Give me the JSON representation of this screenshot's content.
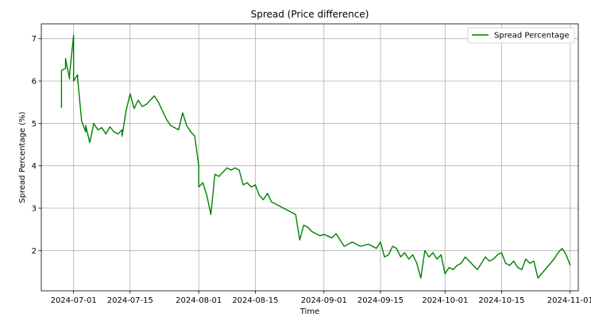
{
  "chart_data": {
    "type": "line",
    "title": "Spread (Price difference)",
    "xlabel": "Time",
    "ylabel": "Spread Percentage (%)",
    "grid": true,
    "legend_position": "top-right",
    "x_range": [
      "2024-06-23",
      "2024-11-03"
    ],
    "ylim": [
      1.05,
      7.35
    ],
    "x_ticks": [
      "2024-07-01",
      "2024-07-15",
      "2024-08-01",
      "2024-08-15",
      "2024-09-01",
      "2024-09-15",
      "2024-10-01",
      "2024-10-15",
      "2024-11-01"
    ],
    "y_ticks": [
      2,
      3,
      4,
      5,
      6,
      7
    ],
    "series": [
      {
        "name": "Spread Percentage",
        "color": "#008000",
        "points": [
          [
            "2024-06-28",
            5.37
          ],
          [
            "2024-06-28",
            6.25
          ],
          [
            "2024-06-29",
            6.3
          ],
          [
            "2024-06-29",
            6.53
          ],
          [
            "2024-06-30",
            6.05
          ],
          [
            "2024-06-30",
            6.15
          ],
          [
            "2024-07-01",
            7.08
          ],
          [
            "2024-07-01",
            6.0
          ],
          [
            "2024-07-02",
            6.15
          ],
          [
            "2024-07-02",
            6.05
          ],
          [
            "2024-07-03",
            5.05
          ],
          [
            "2024-07-04",
            4.8
          ],
          [
            "2024-07-04",
            4.95
          ],
          [
            "2024-07-05",
            4.55
          ],
          [
            "2024-07-06",
            5.0
          ],
          [
            "2024-07-07",
            4.85
          ],
          [
            "2024-07-08",
            4.9
          ],
          [
            "2024-07-09",
            4.75
          ],
          [
            "2024-07-10",
            4.92
          ],
          [
            "2024-07-11",
            4.8
          ],
          [
            "2024-07-12",
            4.75
          ],
          [
            "2024-07-13",
            4.85
          ],
          [
            "2024-07-13",
            4.7
          ],
          [
            "2024-07-14",
            5.3
          ],
          [
            "2024-07-15",
            5.7
          ],
          [
            "2024-07-16",
            5.35
          ],
          [
            "2024-07-17",
            5.55
          ],
          [
            "2024-07-18",
            5.4
          ],
          [
            "2024-07-19",
            5.45
          ],
          [
            "2024-07-20",
            5.55
          ],
          [
            "2024-07-21",
            5.65
          ],
          [
            "2024-07-22",
            5.5
          ],
          [
            "2024-07-23",
            5.3
          ],
          [
            "2024-07-24",
            5.1
          ],
          [
            "2024-07-25",
            4.95
          ],
          [
            "2024-07-26",
            4.9
          ],
          [
            "2024-07-27",
            4.85
          ],
          [
            "2024-07-28",
            5.25
          ],
          [
            "2024-07-29",
            4.95
          ],
          [
            "2024-07-30",
            4.8
          ],
          [
            "2024-07-31",
            4.7
          ],
          [
            "2024-08-01",
            4.0
          ],
          [
            "2024-08-01",
            3.5
          ],
          [
            "2024-08-02",
            3.6
          ],
          [
            "2024-08-03",
            3.3
          ],
          [
            "2024-08-04",
            2.85
          ],
          [
            "2024-08-05",
            3.8
          ],
          [
            "2024-08-06",
            3.75
          ],
          [
            "2024-08-07",
            3.85
          ],
          [
            "2024-08-08",
            3.95
          ],
          [
            "2024-08-09",
            3.9
          ],
          [
            "2024-08-10",
            3.95
          ],
          [
            "2024-08-11",
            3.9
          ],
          [
            "2024-08-12",
            3.55
          ],
          [
            "2024-08-13",
            3.6
          ],
          [
            "2024-08-14",
            3.5
          ],
          [
            "2024-08-15",
            3.55
          ],
          [
            "2024-08-16",
            3.3
          ],
          [
            "2024-08-17",
            3.2
          ],
          [
            "2024-08-18",
            3.35
          ],
          [
            "2024-08-19",
            3.15
          ],
          [
            "2024-08-20",
            3.1
          ],
          [
            "2024-08-21",
            3.05
          ],
          [
            "2024-08-22",
            3.0
          ],
          [
            "2024-08-23",
            2.95
          ],
          [
            "2024-08-24",
            2.9
          ],
          [
            "2024-08-25",
            2.85
          ],
          [
            "2024-08-26",
            2.25
          ],
          [
            "2024-08-27",
            2.6
          ],
          [
            "2024-08-28",
            2.55
          ],
          [
            "2024-08-29",
            2.45
          ],
          [
            "2024-08-30",
            2.4
          ],
          [
            "2024-08-31",
            2.35
          ],
          [
            "2024-09-01",
            2.38
          ],
          [
            "2024-09-03",
            2.3
          ],
          [
            "2024-09-04",
            2.4
          ],
          [
            "2024-09-05",
            2.25
          ],
          [
            "2024-09-06",
            2.1
          ],
          [
            "2024-09-08",
            2.2
          ],
          [
            "2024-09-10",
            2.1
          ],
          [
            "2024-09-12",
            2.15
          ],
          [
            "2024-09-14",
            2.05
          ],
          [
            "2024-09-15",
            2.2
          ],
          [
            "2024-09-16",
            1.85
          ],
          [
            "2024-09-17",
            1.9
          ],
          [
            "2024-09-18",
            2.1
          ],
          [
            "2024-09-19",
            2.05
          ],
          [
            "2024-09-20",
            1.85
          ],
          [
            "2024-09-21",
            1.95
          ],
          [
            "2024-09-22",
            1.8
          ],
          [
            "2024-09-23",
            1.9
          ],
          [
            "2024-09-24",
            1.7
          ],
          [
            "2024-09-25",
            1.35
          ],
          [
            "2024-09-26",
            2.0
          ],
          [
            "2024-09-27",
            1.85
          ],
          [
            "2024-09-28",
            1.95
          ],
          [
            "2024-09-29",
            1.8
          ],
          [
            "2024-09-30",
            1.9
          ],
          [
            "2024-10-01",
            1.45
          ],
          [
            "2024-10-02",
            1.6
          ],
          [
            "2024-10-03",
            1.55
          ],
          [
            "2024-10-04",
            1.65
          ],
          [
            "2024-10-05",
            1.7
          ],
          [
            "2024-10-06",
            1.85
          ],
          [
            "2024-10-07",
            1.75
          ],
          [
            "2024-10-08",
            1.65
          ],
          [
            "2024-10-09",
            1.55
          ],
          [
            "2024-10-10",
            1.7
          ],
          [
            "2024-10-11",
            1.85
          ],
          [
            "2024-10-12",
            1.75
          ],
          [
            "2024-10-13",
            1.8
          ],
          [
            "2024-10-14",
            1.9
          ],
          [
            "2024-10-15",
            1.95
          ],
          [
            "2024-10-16",
            1.7
          ],
          [
            "2024-10-17",
            1.65
          ],
          [
            "2024-10-18",
            1.75
          ],
          [
            "2024-10-19",
            1.6
          ],
          [
            "2024-10-20",
            1.55
          ],
          [
            "2024-10-21",
            1.8
          ],
          [
            "2024-10-22",
            1.7
          ],
          [
            "2024-10-23",
            1.75
          ],
          [
            "2024-10-24",
            1.35
          ],
          [
            "2024-10-28",
            1.8
          ],
          [
            "2024-10-29",
            1.95
          ],
          [
            "2024-10-30",
            2.05
          ],
          [
            "2024-10-31",
            1.9
          ],
          [
            "2024-11-01",
            1.65
          ]
        ]
      }
    ]
  }
}
